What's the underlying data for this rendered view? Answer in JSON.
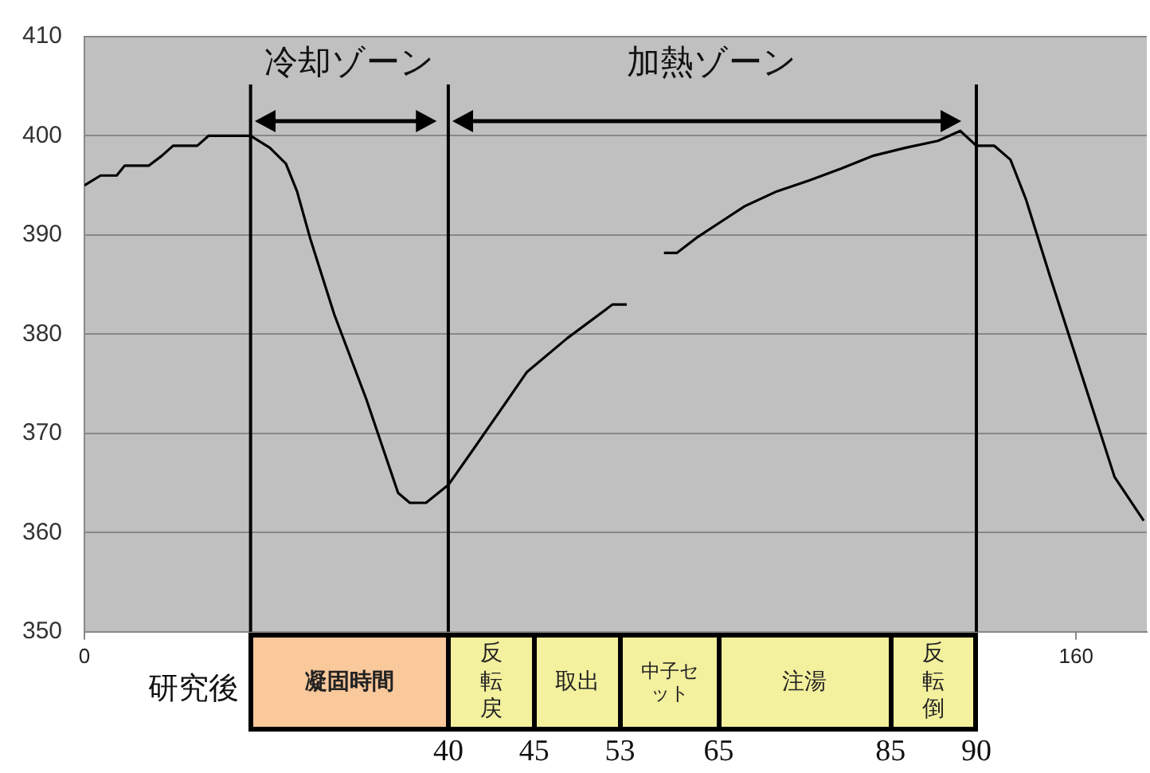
{
  "chart_data": {
    "type": "line",
    "x": [
      0,
      2.6,
      5.2,
      6.5,
      10.4,
      12.5,
      14.3,
      18.2,
      20,
      26,
      26.8,
      29.9,
      32.5,
      34.3,
      36.4,
      40.3,
      45.5,
      50.6,
      52.5,
      55.1,
      58.7,
      62.3,
      66.2,
      71.4,
      77.9,
      85.2,
      87.5,
      90,
      93.5,
      95.6,
      98.7,
      102.6,
      106.5,
      111.7,
      116.9,
      122.1,
      127.3,
      132.5,
      137.7,
      141.3,
      143.9,
      146.8,
      149.4,
      151.9,
      155.8,
      161,
      166.2,
      170.9
    ],
    "series": [
      {
        "color": "#000000",
        "values": [
          395,
          396,
          396,
          397,
          397,
          398,
          399,
          399,
          400,
          400,
          400,
          398.8,
          397.2,
          394.4,
          389.7,
          382,
          373.4,
          364,
          363,
          363,
          364.8,
          368,
          371.5,
          376.2,
          379.6,
          383,
          383,
          null,
          388.2,
          388.2,
          389.7,
          391.3,
          392.9,
          394.4,
          395.5,
          396.7,
          398,
          398.8,
          399.5,
          400.5,
          399,
          399,
          397.6,
          393.6,
          385.8,
          375.7,
          365.6,
          361.2
        ]
      }
    ],
    "xlim": [
      0,
      171.4
    ],
    "xticks": [
      0,
      160
    ],
    "ylim": [
      350,
      410
    ],
    "yticks": [
      350,
      360,
      370,
      380,
      390,
      400,
      410
    ],
    "grid": "y",
    "legend": false,
    "marker": "none",
    "line_style": "solid",
    "ref_lines": [
      {
        "axis": "x",
        "value": 26.8,
        "color": "#000000"
      },
      {
        "axis": "x",
        "value": 58.7,
        "color": "#000000"
      },
      {
        "axis": "x",
        "value": 143.9,
        "color": "#000000"
      }
    ],
    "annotations": [
      "冷却ゾーン",
      "加熱ゾーン",
      "研究後",
      "凝固時間",
      "反転戻",
      "取出",
      "中子セット",
      "注湯",
      "反転倒",
      "40",
      "45",
      "53",
      "65",
      "85",
      "90"
    ]
  }
}
